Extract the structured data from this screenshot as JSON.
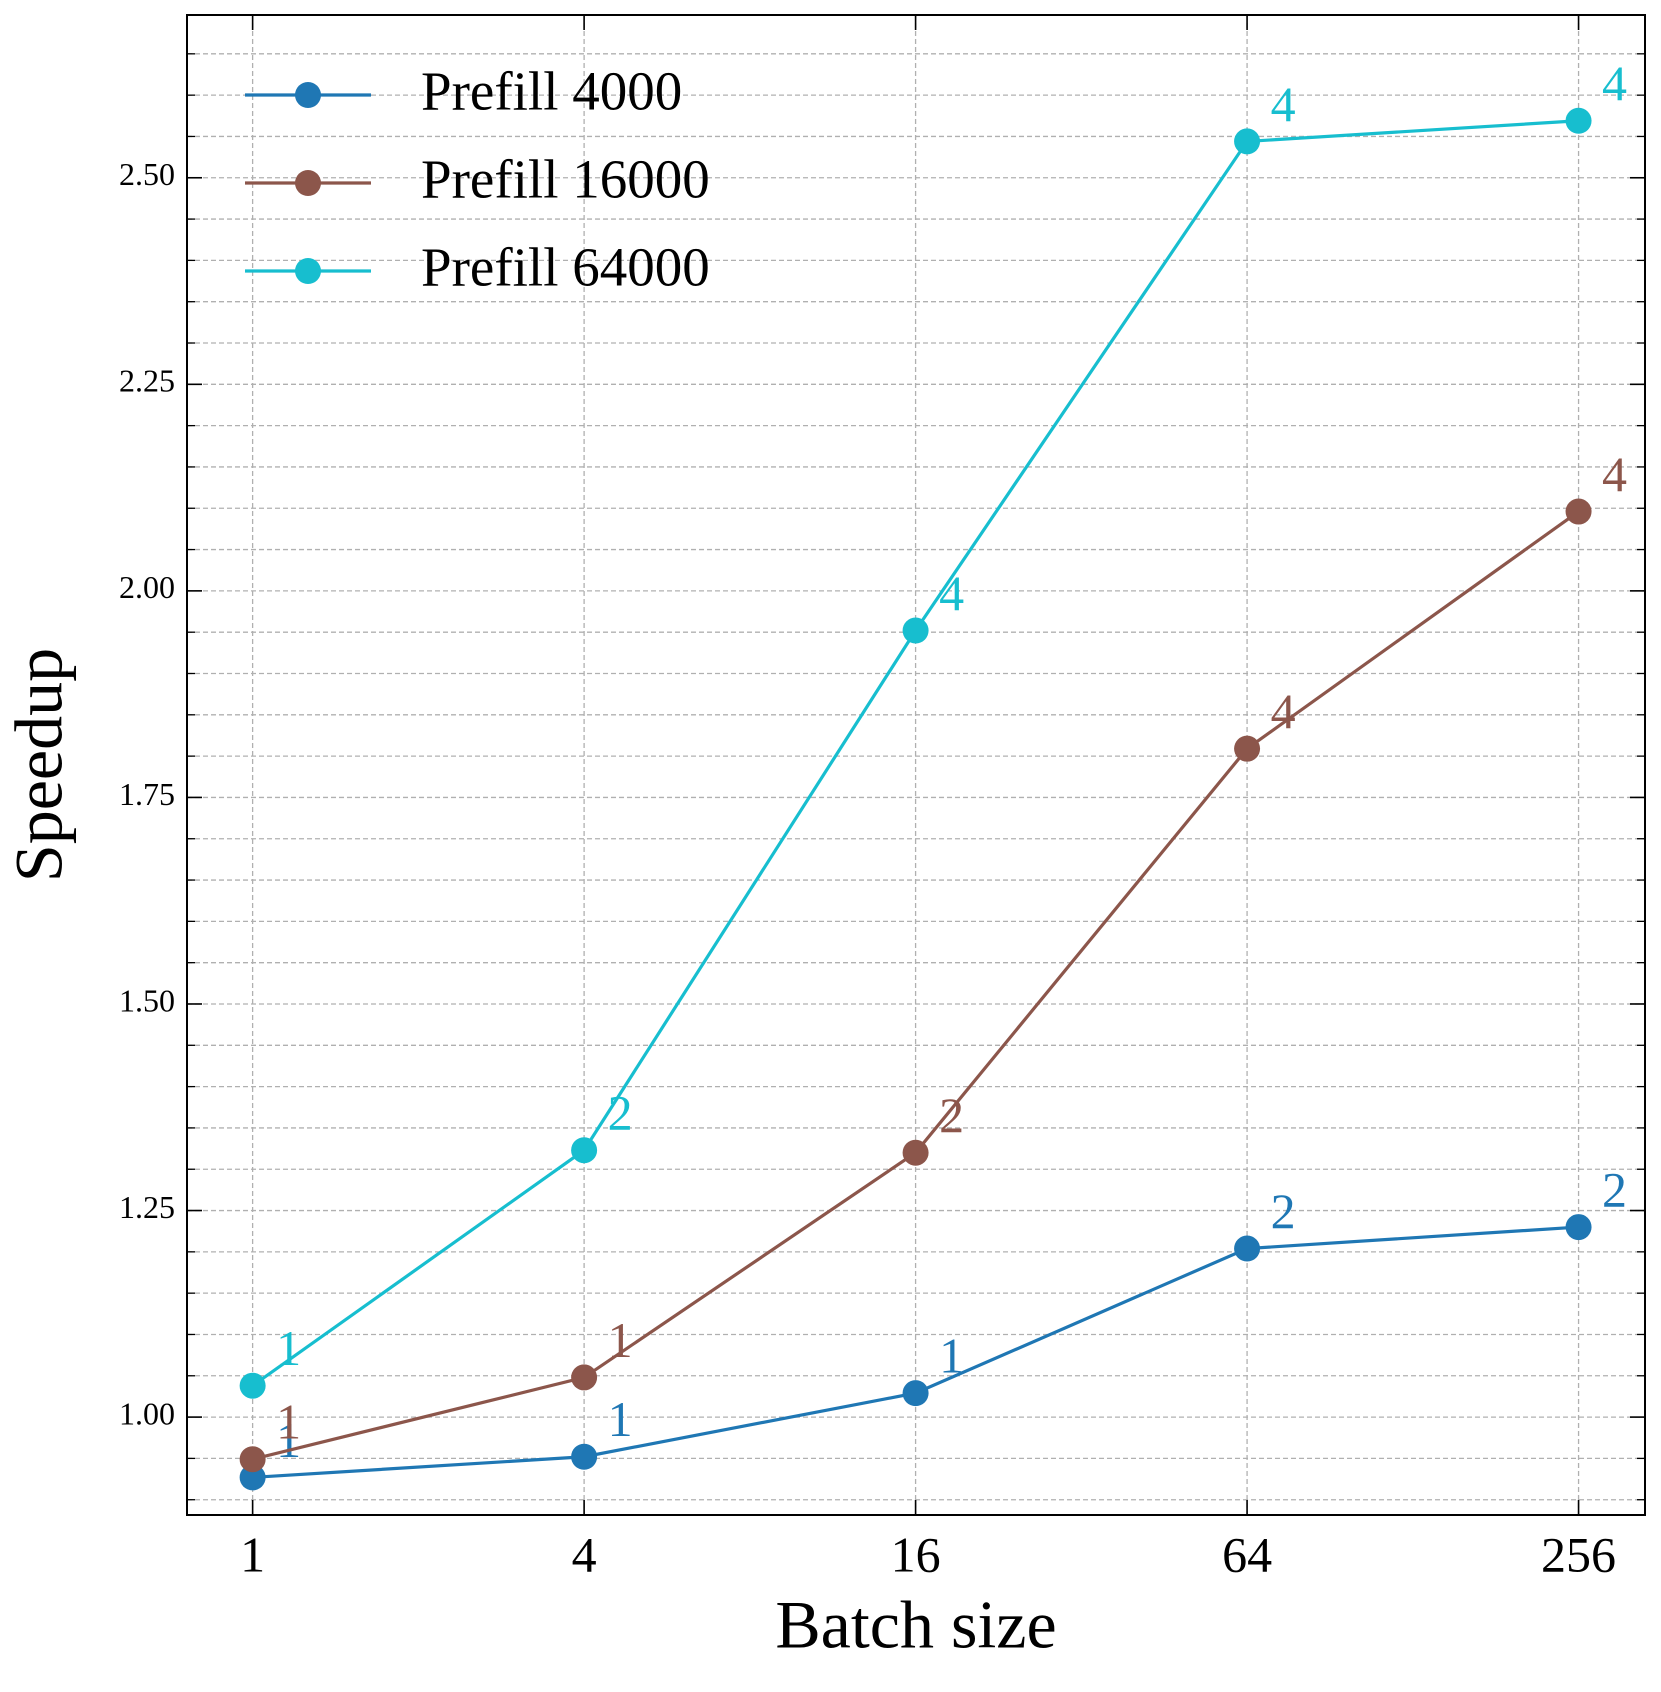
{
  "chart_data": {
    "type": "line",
    "x_label": "Batch size",
    "y_label": "Speedup",
    "x": [
      1,
      4,
      16,
      64,
      256
    ],
    "xscale": "log2",
    "xlim": [
      0.76,
      338
    ],
    "xticks": [
      1,
      4,
      16,
      64,
      256
    ],
    "ylim": [
      0.8815,
      2.697
    ],
    "yticks": [
      {
        "value": 1,
        "label": "1.00"
      },
      {
        "value": 1.25,
        "label": "1.25"
      },
      {
        "value": 1.5,
        "label": "1.50"
      },
      {
        "value": 1.75,
        "label": "1.75"
      },
      {
        "value": 2,
        "label": "2.00"
      },
      {
        "value": 2.25,
        "label": "2.25"
      },
      {
        "value": 2.5,
        "label": "2.50"
      }
    ],
    "yminorticks": [
      0.9,
      0.95,
      1.05,
      1.1,
      1.15,
      1.2,
      1.3,
      1.35,
      1.4,
      1.45,
      1.55,
      1.6,
      1.65,
      1.7,
      1.8,
      1.85,
      1.9,
      1.95,
      2.05,
      2.1,
      2.15,
      2.2,
      2.3,
      2.35,
      2.4,
      2.45,
      2.55,
      2.6,
      2.65
    ],
    "grid": true,
    "legend": "upper left",
    "series": [
      {
        "name": "Prefill 4000",
        "color": "#1f77b4",
        "values": [
          0.927,
          0.952,
          1.029,
          1.204,
          1.23
        ],
        "annotations": [
          "1",
          "1",
          "1",
          "2",
          "2"
        ]
      },
      {
        "name": "Prefill 16000",
        "color": "#8c564b",
        "values": [
          0.949,
          1.048,
          1.32,
          1.809,
          2.096
        ],
        "annotations": [
          "1",
          "1",
          "2",
          "4",
          "4"
        ]
      },
      {
        "name": "Prefill 64000",
        "color": "#17becf",
        "values": [
          1.038,
          1.323,
          1.952,
          2.544,
          2.569
        ],
        "annotations": [
          "1",
          "2",
          "4",
          "4",
          "4"
        ]
      }
    ]
  }
}
